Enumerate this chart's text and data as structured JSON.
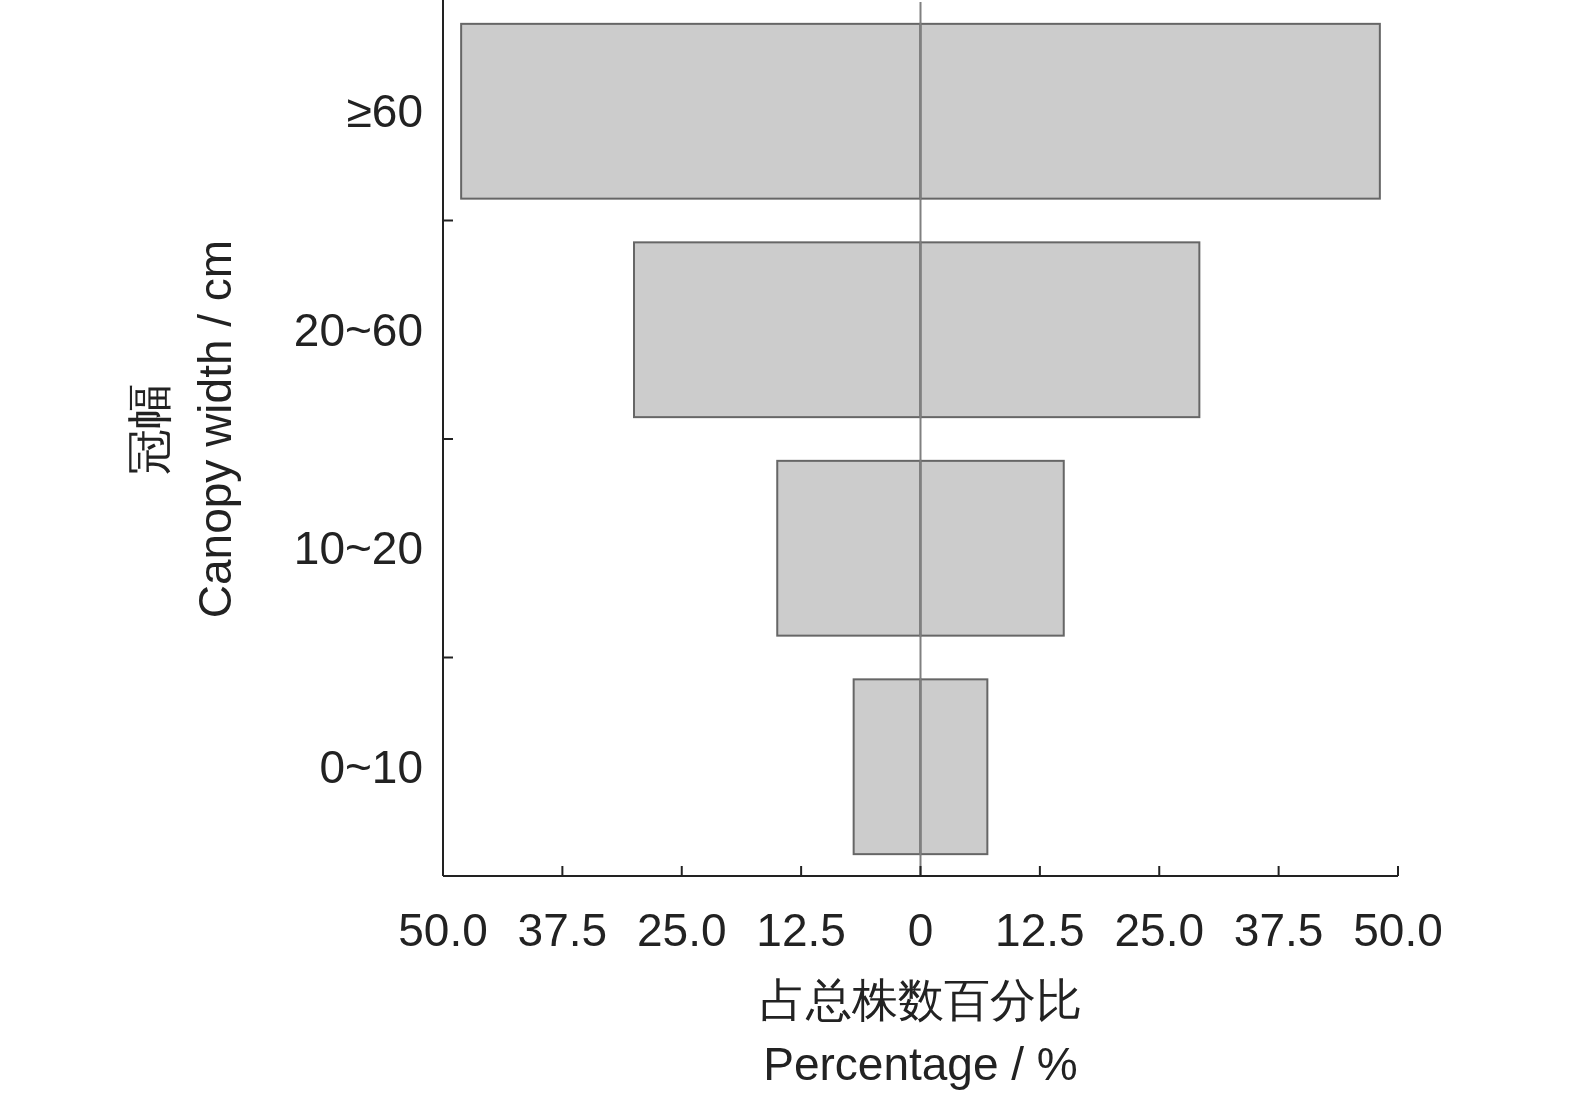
{
  "chart_data": {
    "type": "bar",
    "orientation": "horizontal",
    "stacked": true,
    "categories": [
      "≥60",
      "20~60",
      "10~20",
      "0~10"
    ],
    "series": [
      {
        "color": "#cccccc",
        "values": [
          -48.1,
          -30.0,
          -15.0,
          -7.0
        ]
      },
      {
        "color": "#cccccc",
        "values": [
          48.1,
          29.2,
          15.0,
          7.0
        ]
      }
    ],
    "xlim": [
      -50,
      50
    ],
    "xticks": [
      {
        "value": -50,
        "label": "50.0"
      },
      {
        "value": -37.5,
        "label": "37.5"
      },
      {
        "value": -25,
        "label": "25.0"
      },
      {
        "value": -12.5,
        "label": "12.5"
      },
      0,
      {
        "value": 12.5,
        "label": "12.5"
      },
      {
        "value": 25,
        "label": "25.0"
      },
      {
        "value": 37.5,
        "label": "37.5"
      },
      {
        "value": 50,
        "label": "50.0"
      }
    ],
    "xlabel": "占总株数百分比\nPercentage / %",
    "ylabel": "冠幅\nCanopy width / cm",
    "ref_lines": [
      {
        "axis": "x",
        "value": 0,
        "color": "#808080"
      }
    ]
  }
}
